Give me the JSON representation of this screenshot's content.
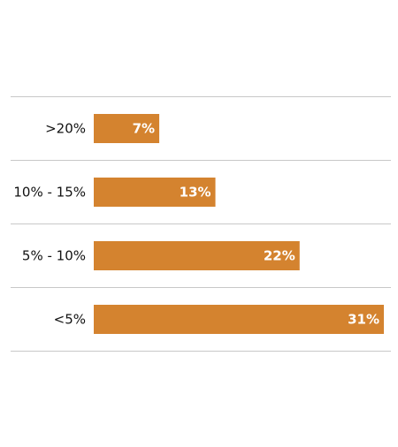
{
  "chart_data": {
    "type": "bar",
    "orientation": "horizontal",
    "categories": [
      ">20%",
      "10% - 15%",
      "5% - 10%",
      "<5%"
    ],
    "values": [
      7,
      13,
      22,
      31
    ],
    "value_labels": [
      "7%",
      "13%",
      "22%",
      "31%"
    ],
    "xlim": [
      0,
      31
    ],
    "grid": "horizontal separators between rows",
    "bar_color": "#D4832F",
    "gridline_color": "#C8C8C8",
    "title": "",
    "xlabel": "",
    "ylabel": ""
  }
}
